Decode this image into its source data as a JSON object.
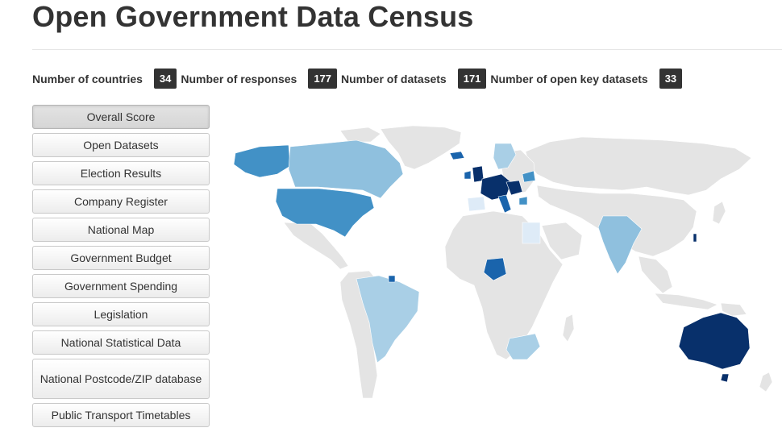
{
  "page": {
    "title": "Open Government Data Census"
  },
  "stats": [
    {
      "label": "Number of countries",
      "value": "34"
    },
    {
      "label": "Number of responses",
      "value": "177"
    },
    {
      "label": "Number of datasets",
      "value": "171"
    },
    {
      "label": "Number of open key datasets",
      "value": "33"
    }
  ],
  "sidebar": {
    "items": [
      {
        "label": "Overall Score",
        "active": true
      },
      {
        "label": "Open Datasets"
      },
      {
        "label": "Election Results"
      },
      {
        "label": "Company Register"
      },
      {
        "label": "National Map"
      },
      {
        "label": "Government Budget"
      },
      {
        "label": "Government Spending"
      },
      {
        "label": "Legislation"
      },
      {
        "label": "National Statistical Data"
      },
      {
        "label": "National Postcode/ZIP database"
      },
      {
        "label": "Public Transport Timetables"
      }
    ]
  },
  "map": {
    "colors": {
      "no_data": "#e4e4e4",
      "level_1": "#deebf7",
      "level_2": "#a9cfe6",
      "level_3": "#8fc0de",
      "level_4": "#4291c6",
      "level_5": "#1a64ac",
      "level_6": "#08306b"
    }
  }
}
